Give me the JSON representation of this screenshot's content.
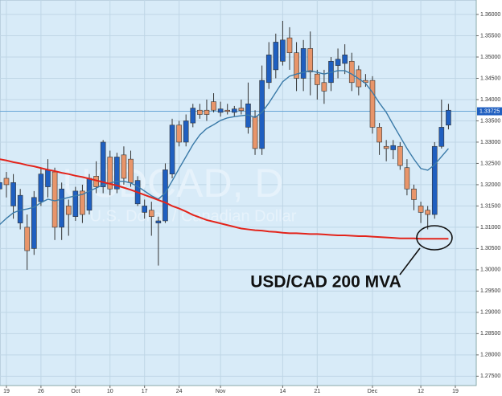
{
  "chart_data": {
    "type": "candlestick",
    "watermark": "USDCAD, D",
    "watermark_subtitle": "U.S. Dollar / Canadian Dollar",
    "annotation": "USD/CAD 200 MVA",
    "categories": [
      null,
      "19",
      null,
      null,
      null,
      null,
      "26",
      null,
      null,
      null,
      null,
      "Oct",
      null,
      null,
      null,
      null,
      "10",
      null,
      null,
      null,
      null,
      "17",
      null,
      null,
      null,
      null,
      "24",
      null,
      null,
      null,
      null,
      null,
      "Nov",
      null,
      null,
      null,
      null,
      null,
      null,
      null,
      null,
      "14",
      null,
      null,
      null,
      null,
      "21",
      null,
      null,
      null,
      null,
      null,
      null,
      null,
      "Dec",
      null,
      null,
      null,
      null,
      null,
      null,
      "12",
      null,
      null,
      null,
      null,
      "19"
    ],
    "up_color": "#1f5fc0",
    "down_color": "#e8956a",
    "open": [
      1.319,
      1.3215,
      1.315,
      1.311,
      1.31,
      1.305,
      1.316,
      1.3195,
      1.323,
      1.31,
      1.315,
      1.3125,
      1.3185,
      1.314,
      1.322,
      1.3195,
      1.3265,
      1.319,
      1.327,
      1.326,
      1.3155,
      1.3135,
      1.314,
      1.311,
      1.3115,
      1.3225,
      1.334,
      1.33,
      1.3345,
      1.3375,
      1.3375,
      1.3395,
      1.337,
      1.3375,
      1.337,
      1.338,
      1.3335,
      1.336,
      1.3285,
      1.344,
      1.347,
      1.349,
      1.3545,
      1.351,
      1.345,
      1.352,
      1.346,
      1.344,
      1.344,
      1.348,
      1.3485,
      1.349,
      1.347,
      1.3445,
      1.3445,
      1.3335,
      1.329,
      1.3282,
      1.329,
      1.324,
      1.319,
      1.315,
      1.314,
      1.313,
      1.329,
      1.334,
      null
    ],
    "high": [
      1.3215,
      1.323,
      1.3225,
      1.319,
      1.313,
      1.3185,
      1.324,
      1.326,
      1.324,
      1.3205,
      1.3165,
      1.3195,
      1.32,
      1.3225,
      1.3255,
      1.3305,
      1.328,
      1.3275,
      1.329,
      1.328,
      1.322,
      1.3165,
      1.316,
      1.3125,
      1.325,
      1.3355,
      1.335,
      1.3365,
      1.339,
      1.339,
      1.34,
      1.3415,
      1.3395,
      1.339,
      1.3385,
      1.34,
      1.344,
      1.3375,
      1.348,
      1.3535,
      1.3555,
      1.3585,
      1.357,
      1.3535,
      1.354,
      1.356,
      1.347,
      1.347,
      1.35,
      1.352,
      1.353,
      1.351,
      1.348,
      1.346,
      1.3455,
      1.3345,
      1.3305,
      1.3305,
      1.33,
      1.326,
      1.32,
      1.316,
      1.315,
      1.33,
      1.34,
      1.339,
      null
    ],
    "low": [
      1.314,
      1.317,
      1.312,
      1.3095,
      1.3,
      1.3035,
      1.315,
      1.317,
      1.307,
      1.307,
      1.308,
      1.3115,
      1.311,
      1.313,
      1.318,
      1.318,
      1.3175,
      1.318,
      1.32,
      1.3195,
      1.315,
      1.312,
      1.308,
      1.301,
      1.311,
      1.3215,
      1.329,
      1.329,
      1.3335,
      1.3355,
      1.335,
      1.337,
      1.336,
      1.3365,
      1.336,
      1.3365,
      1.332,
      1.327,
      1.327,
      1.3425,
      1.345,
      1.348,
      1.347,
      1.342,
      1.342,
      1.341,
      1.34,
      1.339,
      1.342,
      1.345,
      1.346,
      1.342,
      1.341,
      1.343,
      1.332,
      1.327,
      1.3255,
      1.326,
      1.3235,
      1.3175,
      1.314,
      1.311,
      1.3095,
      1.312,
      1.3285,
      1.333,
      null
    ],
    "close": [
      1.3205,
      1.32,
      1.3205,
      1.3175,
      1.3045,
      1.317,
      1.3225,
      1.3235,
      1.31,
      1.319,
      1.313,
      1.3185,
      1.313,
      1.3215,
      1.3195,
      1.33,
      1.319,
      1.3265,
      1.3215,
      1.3205,
      1.321,
      1.315,
      1.3125,
      1.3115,
      1.3235,
      1.334,
      1.33,
      1.335,
      1.338,
      1.3365,
      1.3365,
      1.3375,
      1.3378,
      1.3372,
      1.3378,
      1.3374,
      1.339,
      1.3285,
      1.3445,
      1.3505,
      1.3535,
      1.354,
      1.351,
      1.345,
      1.352,
      1.3465,
      1.3435,
      1.342,
      1.349,
      1.3495,
      1.3505,
      1.344,
      1.343,
      1.344,
      1.3335,
      1.33,
      1.3285,
      1.3292,
      1.3245,
      1.319,
      1.3165,
      1.3135,
      1.313,
      1.329,
      1.3335,
      1.3375,
      null
    ],
    "lines": [
      {
        "color": "#3a7aa8",
        "values": [
          1.3106,
          1.3121,
          1.3134,
          1.314,
          1.3143,
          1.3147,
          1.3158,
          1.3166,
          1.3162,
          1.3166,
          1.317,
          1.3174,
          1.3177,
          1.3185,
          1.3192,
          1.32,
          1.3204,
          1.3208,
          1.3208,
          1.3204,
          1.3196,
          1.3185,
          1.3174,
          1.3166,
          1.3181,
          1.3209,
          1.3238,
          1.3266,
          1.3294,
          1.3317,
          1.3332,
          1.3341,
          1.3351,
          1.3357,
          1.336,
          1.3362,
          1.3364,
          1.3358,
          1.337,
          1.3392,
          1.3417,
          1.3442,
          1.3455,
          1.346,
          1.3464,
          1.3468,
          1.3464,
          1.346,
          1.3464,
          1.3468,
          1.3468,
          1.346,
          1.3449,
          1.3438,
          1.3417,
          1.3392,
          1.337,
          1.3341,
          1.3313,
          1.3285,
          1.326,
          1.3238,
          1.3234,
          1.3247,
          1.3266,
          1.3285,
          null
        ]
      },
      {
        "color": "#e3241b",
        "values": [
          1.326,
          1.3257,
          1.3253,
          1.325,
          1.3246,
          1.3243,
          1.3239,
          1.3235,
          1.3232,
          1.3228,
          1.3225,
          1.3221,
          1.3218,
          1.3214,
          1.321,
          1.3206,
          1.3202,
          1.3198,
          1.3193,
          1.3188,
          1.3182,
          1.3176,
          1.317,
          1.3164,
          1.3158,
          1.315,
          1.3144,
          1.3137,
          1.3129,
          1.3123,
          1.3117,
          1.3113,
          1.3109,
          1.3105,
          1.3101,
          1.3097,
          1.3095,
          1.3093,
          1.3092,
          1.309,
          1.3089,
          1.3087,
          1.3086,
          1.3086,
          1.3085,
          1.3084,
          1.3084,
          1.3083,
          1.3082,
          1.3081,
          1.3081,
          1.308,
          1.3079,
          1.3079,
          1.3078,
          1.3077,
          1.3076,
          1.3075,
          1.3074,
          1.3074,
          1.3074,
          1.3073,
          1.3073,
          1.3073,
          1.3073,
          1.3073,
          null
        ]
      }
    ],
    "last_price": {
      "value": 1.33725,
      "label": "1.33725"
    },
    "ylim": [
      1.2728,
      1.3634
    ],
    "yticks": [
      {
        "value": 1.275,
        "label": "1.27500"
      },
      {
        "value": 1.28,
        "label": "1.28000"
      },
      {
        "value": 1.285,
        "label": "1.28500"
      },
      {
        "value": 1.29,
        "label": "1.29000"
      },
      {
        "value": 1.295,
        "label": "1.29500"
      },
      {
        "value": 1.3,
        "label": "1.30000"
      },
      {
        "value": 1.305,
        "label": "1.30500"
      },
      {
        "value": 1.31,
        "label": "1.31000"
      },
      {
        "value": 1.315,
        "label": "1.31500"
      },
      {
        "value": 1.32,
        "label": "1.32000"
      },
      {
        "value": 1.325,
        "label": "1.32500"
      },
      {
        "value": 1.33,
        "label": "1.33000"
      },
      {
        "value": 1.335,
        "label": "1.33500"
      },
      {
        "value": 1.34,
        "label": "1.34000"
      },
      {
        "value": 1.345,
        "label": "1.34500"
      },
      {
        "value": 1.35,
        "label": "1.35000"
      },
      {
        "value": 1.355,
        "label": "1.35500"
      },
      {
        "value": 1.36,
        "label": "1.36000"
      }
    ],
    "grid": true
  }
}
